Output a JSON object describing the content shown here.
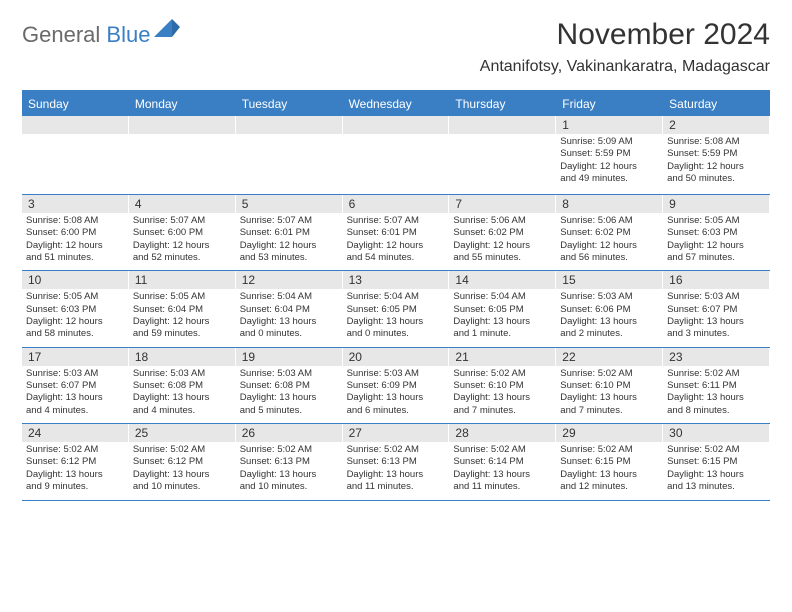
{
  "brand": {
    "part1": "General",
    "part2": "Blue"
  },
  "title": "November 2024",
  "subtitle": "Antanifotsy, Vakinankaratra, Madagascar",
  "colors": {
    "accent": "#3a7fc4",
    "header_bg": "#3a7fc4",
    "header_text": "#ffffff",
    "daynum_bg": "#e7e7e7",
    "body_text": "#333333",
    "logo_gray": "#6a6a6a"
  },
  "dayNames": [
    "Sunday",
    "Monday",
    "Tuesday",
    "Wednesday",
    "Thursday",
    "Friday",
    "Saturday"
  ],
  "weeks": [
    [
      {
        "day": "",
        "sunrise": "",
        "sunset": "",
        "daylight1": "",
        "daylight2": ""
      },
      {
        "day": "",
        "sunrise": "",
        "sunset": "",
        "daylight1": "",
        "daylight2": ""
      },
      {
        "day": "",
        "sunrise": "",
        "sunset": "",
        "daylight1": "",
        "daylight2": ""
      },
      {
        "day": "",
        "sunrise": "",
        "sunset": "",
        "daylight1": "",
        "daylight2": ""
      },
      {
        "day": "",
        "sunrise": "",
        "sunset": "",
        "daylight1": "",
        "daylight2": ""
      },
      {
        "day": "1",
        "sunrise": "Sunrise: 5:09 AM",
        "sunset": "Sunset: 5:59 PM",
        "daylight1": "Daylight: 12 hours",
        "daylight2": "and 49 minutes."
      },
      {
        "day": "2",
        "sunrise": "Sunrise: 5:08 AM",
        "sunset": "Sunset: 5:59 PM",
        "daylight1": "Daylight: 12 hours",
        "daylight2": "and 50 minutes."
      }
    ],
    [
      {
        "day": "3",
        "sunrise": "Sunrise: 5:08 AM",
        "sunset": "Sunset: 6:00 PM",
        "daylight1": "Daylight: 12 hours",
        "daylight2": "and 51 minutes."
      },
      {
        "day": "4",
        "sunrise": "Sunrise: 5:07 AM",
        "sunset": "Sunset: 6:00 PM",
        "daylight1": "Daylight: 12 hours",
        "daylight2": "and 52 minutes."
      },
      {
        "day": "5",
        "sunrise": "Sunrise: 5:07 AM",
        "sunset": "Sunset: 6:01 PM",
        "daylight1": "Daylight: 12 hours",
        "daylight2": "and 53 minutes."
      },
      {
        "day": "6",
        "sunrise": "Sunrise: 5:07 AM",
        "sunset": "Sunset: 6:01 PM",
        "daylight1": "Daylight: 12 hours",
        "daylight2": "and 54 minutes."
      },
      {
        "day": "7",
        "sunrise": "Sunrise: 5:06 AM",
        "sunset": "Sunset: 6:02 PM",
        "daylight1": "Daylight: 12 hours",
        "daylight2": "and 55 minutes."
      },
      {
        "day": "8",
        "sunrise": "Sunrise: 5:06 AM",
        "sunset": "Sunset: 6:02 PM",
        "daylight1": "Daylight: 12 hours",
        "daylight2": "and 56 minutes."
      },
      {
        "day": "9",
        "sunrise": "Sunrise: 5:05 AM",
        "sunset": "Sunset: 6:03 PM",
        "daylight1": "Daylight: 12 hours",
        "daylight2": "and 57 minutes."
      }
    ],
    [
      {
        "day": "10",
        "sunrise": "Sunrise: 5:05 AM",
        "sunset": "Sunset: 6:03 PM",
        "daylight1": "Daylight: 12 hours",
        "daylight2": "and 58 minutes."
      },
      {
        "day": "11",
        "sunrise": "Sunrise: 5:05 AM",
        "sunset": "Sunset: 6:04 PM",
        "daylight1": "Daylight: 12 hours",
        "daylight2": "and 59 minutes."
      },
      {
        "day": "12",
        "sunrise": "Sunrise: 5:04 AM",
        "sunset": "Sunset: 6:04 PM",
        "daylight1": "Daylight: 13 hours",
        "daylight2": "and 0 minutes."
      },
      {
        "day": "13",
        "sunrise": "Sunrise: 5:04 AM",
        "sunset": "Sunset: 6:05 PM",
        "daylight1": "Daylight: 13 hours",
        "daylight2": "and 0 minutes."
      },
      {
        "day": "14",
        "sunrise": "Sunrise: 5:04 AM",
        "sunset": "Sunset: 6:05 PM",
        "daylight1": "Daylight: 13 hours",
        "daylight2": "and 1 minute."
      },
      {
        "day": "15",
        "sunrise": "Sunrise: 5:03 AM",
        "sunset": "Sunset: 6:06 PM",
        "daylight1": "Daylight: 13 hours",
        "daylight2": "and 2 minutes."
      },
      {
        "day": "16",
        "sunrise": "Sunrise: 5:03 AM",
        "sunset": "Sunset: 6:07 PM",
        "daylight1": "Daylight: 13 hours",
        "daylight2": "and 3 minutes."
      }
    ],
    [
      {
        "day": "17",
        "sunrise": "Sunrise: 5:03 AM",
        "sunset": "Sunset: 6:07 PM",
        "daylight1": "Daylight: 13 hours",
        "daylight2": "and 4 minutes."
      },
      {
        "day": "18",
        "sunrise": "Sunrise: 5:03 AM",
        "sunset": "Sunset: 6:08 PM",
        "daylight1": "Daylight: 13 hours",
        "daylight2": "and 4 minutes."
      },
      {
        "day": "19",
        "sunrise": "Sunrise: 5:03 AM",
        "sunset": "Sunset: 6:08 PM",
        "daylight1": "Daylight: 13 hours",
        "daylight2": "and 5 minutes."
      },
      {
        "day": "20",
        "sunrise": "Sunrise: 5:03 AM",
        "sunset": "Sunset: 6:09 PM",
        "daylight1": "Daylight: 13 hours",
        "daylight2": "and 6 minutes."
      },
      {
        "day": "21",
        "sunrise": "Sunrise: 5:02 AM",
        "sunset": "Sunset: 6:10 PM",
        "daylight1": "Daylight: 13 hours",
        "daylight2": "and 7 minutes."
      },
      {
        "day": "22",
        "sunrise": "Sunrise: 5:02 AM",
        "sunset": "Sunset: 6:10 PM",
        "daylight1": "Daylight: 13 hours",
        "daylight2": "and 7 minutes."
      },
      {
        "day": "23",
        "sunrise": "Sunrise: 5:02 AM",
        "sunset": "Sunset: 6:11 PM",
        "daylight1": "Daylight: 13 hours",
        "daylight2": "and 8 minutes."
      }
    ],
    [
      {
        "day": "24",
        "sunrise": "Sunrise: 5:02 AM",
        "sunset": "Sunset: 6:12 PM",
        "daylight1": "Daylight: 13 hours",
        "daylight2": "and 9 minutes."
      },
      {
        "day": "25",
        "sunrise": "Sunrise: 5:02 AM",
        "sunset": "Sunset: 6:12 PM",
        "daylight1": "Daylight: 13 hours",
        "daylight2": "and 10 minutes."
      },
      {
        "day": "26",
        "sunrise": "Sunrise: 5:02 AM",
        "sunset": "Sunset: 6:13 PM",
        "daylight1": "Daylight: 13 hours",
        "daylight2": "and 10 minutes."
      },
      {
        "day": "27",
        "sunrise": "Sunrise: 5:02 AM",
        "sunset": "Sunset: 6:13 PM",
        "daylight1": "Daylight: 13 hours",
        "daylight2": "and 11 minutes."
      },
      {
        "day": "28",
        "sunrise": "Sunrise: 5:02 AM",
        "sunset": "Sunset: 6:14 PM",
        "daylight1": "Daylight: 13 hours",
        "daylight2": "and 11 minutes."
      },
      {
        "day": "29",
        "sunrise": "Sunrise: 5:02 AM",
        "sunset": "Sunset: 6:15 PM",
        "daylight1": "Daylight: 13 hours",
        "daylight2": "and 12 minutes."
      },
      {
        "day": "30",
        "sunrise": "Sunrise: 5:02 AM",
        "sunset": "Sunset: 6:15 PM",
        "daylight1": "Daylight: 13 hours",
        "daylight2": "and 13 minutes."
      }
    ]
  ]
}
